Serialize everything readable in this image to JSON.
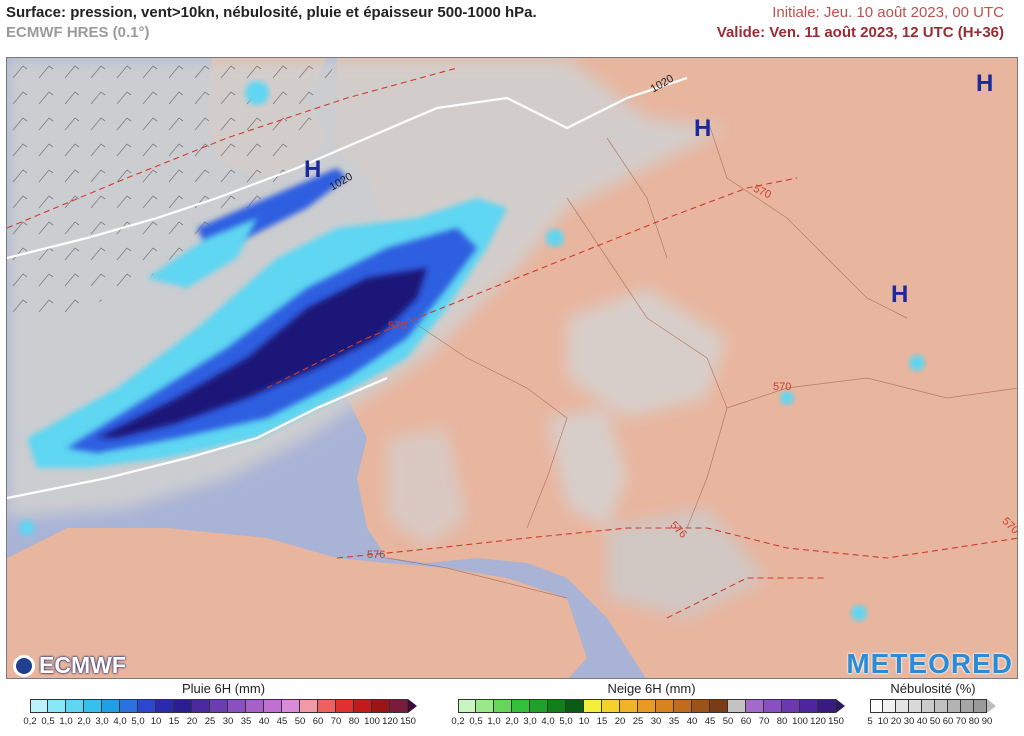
{
  "header": {
    "title": "Surface: pression, vent>10kn, nébulosité, pluie et épaisseur 500-1000 hPa.",
    "subtitle": "ECMWF HRES (0.1°)",
    "initial": "Initiale: Jeu. 10 août 2023, 00 UTC",
    "valid": "Valide: Ven. 11 août 2023, 12 UTC (H+36)"
  },
  "map": {
    "highs": [
      "H",
      "H",
      "H",
      "H"
    ],
    "isobar_labels": [
      "1020",
      "1020"
    ],
    "thickness_labels": [
      "570",
      "570",
      "570",
      "570",
      "576",
      "576",
      "570"
    ],
    "colors": {
      "land": "#e8b59e",
      "sea": "#a9b3d6",
      "cloud": "#d3d3d3",
      "rain_light": "#5ed6f2",
      "rain_mid": "#2f5fe0",
      "rain_heavy": "#1c1478",
      "high_marker": "#1a2a9c",
      "thickness": "#d23b2b"
    }
  },
  "logos": {
    "ecmwf": "ECMWF",
    "meteored": "METEORED"
  },
  "legends": {
    "rain": {
      "title": "Pluie 6H (mm)",
      "ticks": [
        "0,2",
        "0,5",
        "1,0",
        "2,0",
        "3,0",
        "4,0",
        "5,0",
        "10",
        "15",
        "20",
        "25",
        "30",
        "35",
        "40",
        "45",
        "50",
        "60",
        "70",
        "80",
        "100",
        "120",
        "150"
      ],
      "colors": [
        "#b9f3fb",
        "#88e8f8",
        "#5ed6f2",
        "#38c0ec",
        "#1f9fe6",
        "#2a70e0",
        "#2e45d0",
        "#2a2ab0",
        "#2b1d92",
        "#4b2aa0",
        "#6a3db0",
        "#8a4fc0",
        "#a660c8",
        "#c070d0",
        "#d98ad8",
        "#ef9aa6",
        "#f06060",
        "#e03030",
        "#c41a1a",
        "#9c1414",
        "#7a1a3c"
      ],
      "arrow_color": "#3a0a3a"
    },
    "snow": {
      "title": "Neige 6H (mm)",
      "ticks": [
        "0,2",
        "0,5",
        "1,0",
        "2,0",
        "3,0",
        "4,0",
        "5,0",
        "10",
        "15",
        "20",
        "25",
        "30",
        "35",
        "40",
        "45",
        "50",
        "60",
        "70",
        "80",
        "100",
        "120",
        "150"
      ],
      "colors": [
        "#c8f5c0",
        "#9ae889",
        "#66d65a",
        "#34c03a",
        "#1ea22a",
        "#128018",
        "#0a5c12",
        "#f4ef3a",
        "#f5d22a",
        "#f2b324",
        "#e99a20",
        "#d9831e",
        "#c06c1c",
        "#9c5218",
        "#7a3c14",
        "#c4c4c4",
        "#a46ac8",
        "#8a4fc0",
        "#6d38b0",
        "#4f26a0",
        "#3a1a80"
      ],
      "arrow_color": "#2a1a5a"
    },
    "cloud": {
      "title": "Nébulosité (%)",
      "ticks": [
        "5",
        "10",
        "20",
        "30",
        "40",
        "50",
        "60",
        "70",
        "80",
        "90"
      ],
      "colors": [
        "#fdfdfd",
        "#f2f2f2",
        "#e5e5e5",
        "#d9d9d9",
        "#cccccc",
        "#c0c0c0",
        "#b3b3b3",
        "#a6a6a6",
        "#9a9a9a"
      ],
      "arrow_color": "#bdbdbd"
    }
  }
}
